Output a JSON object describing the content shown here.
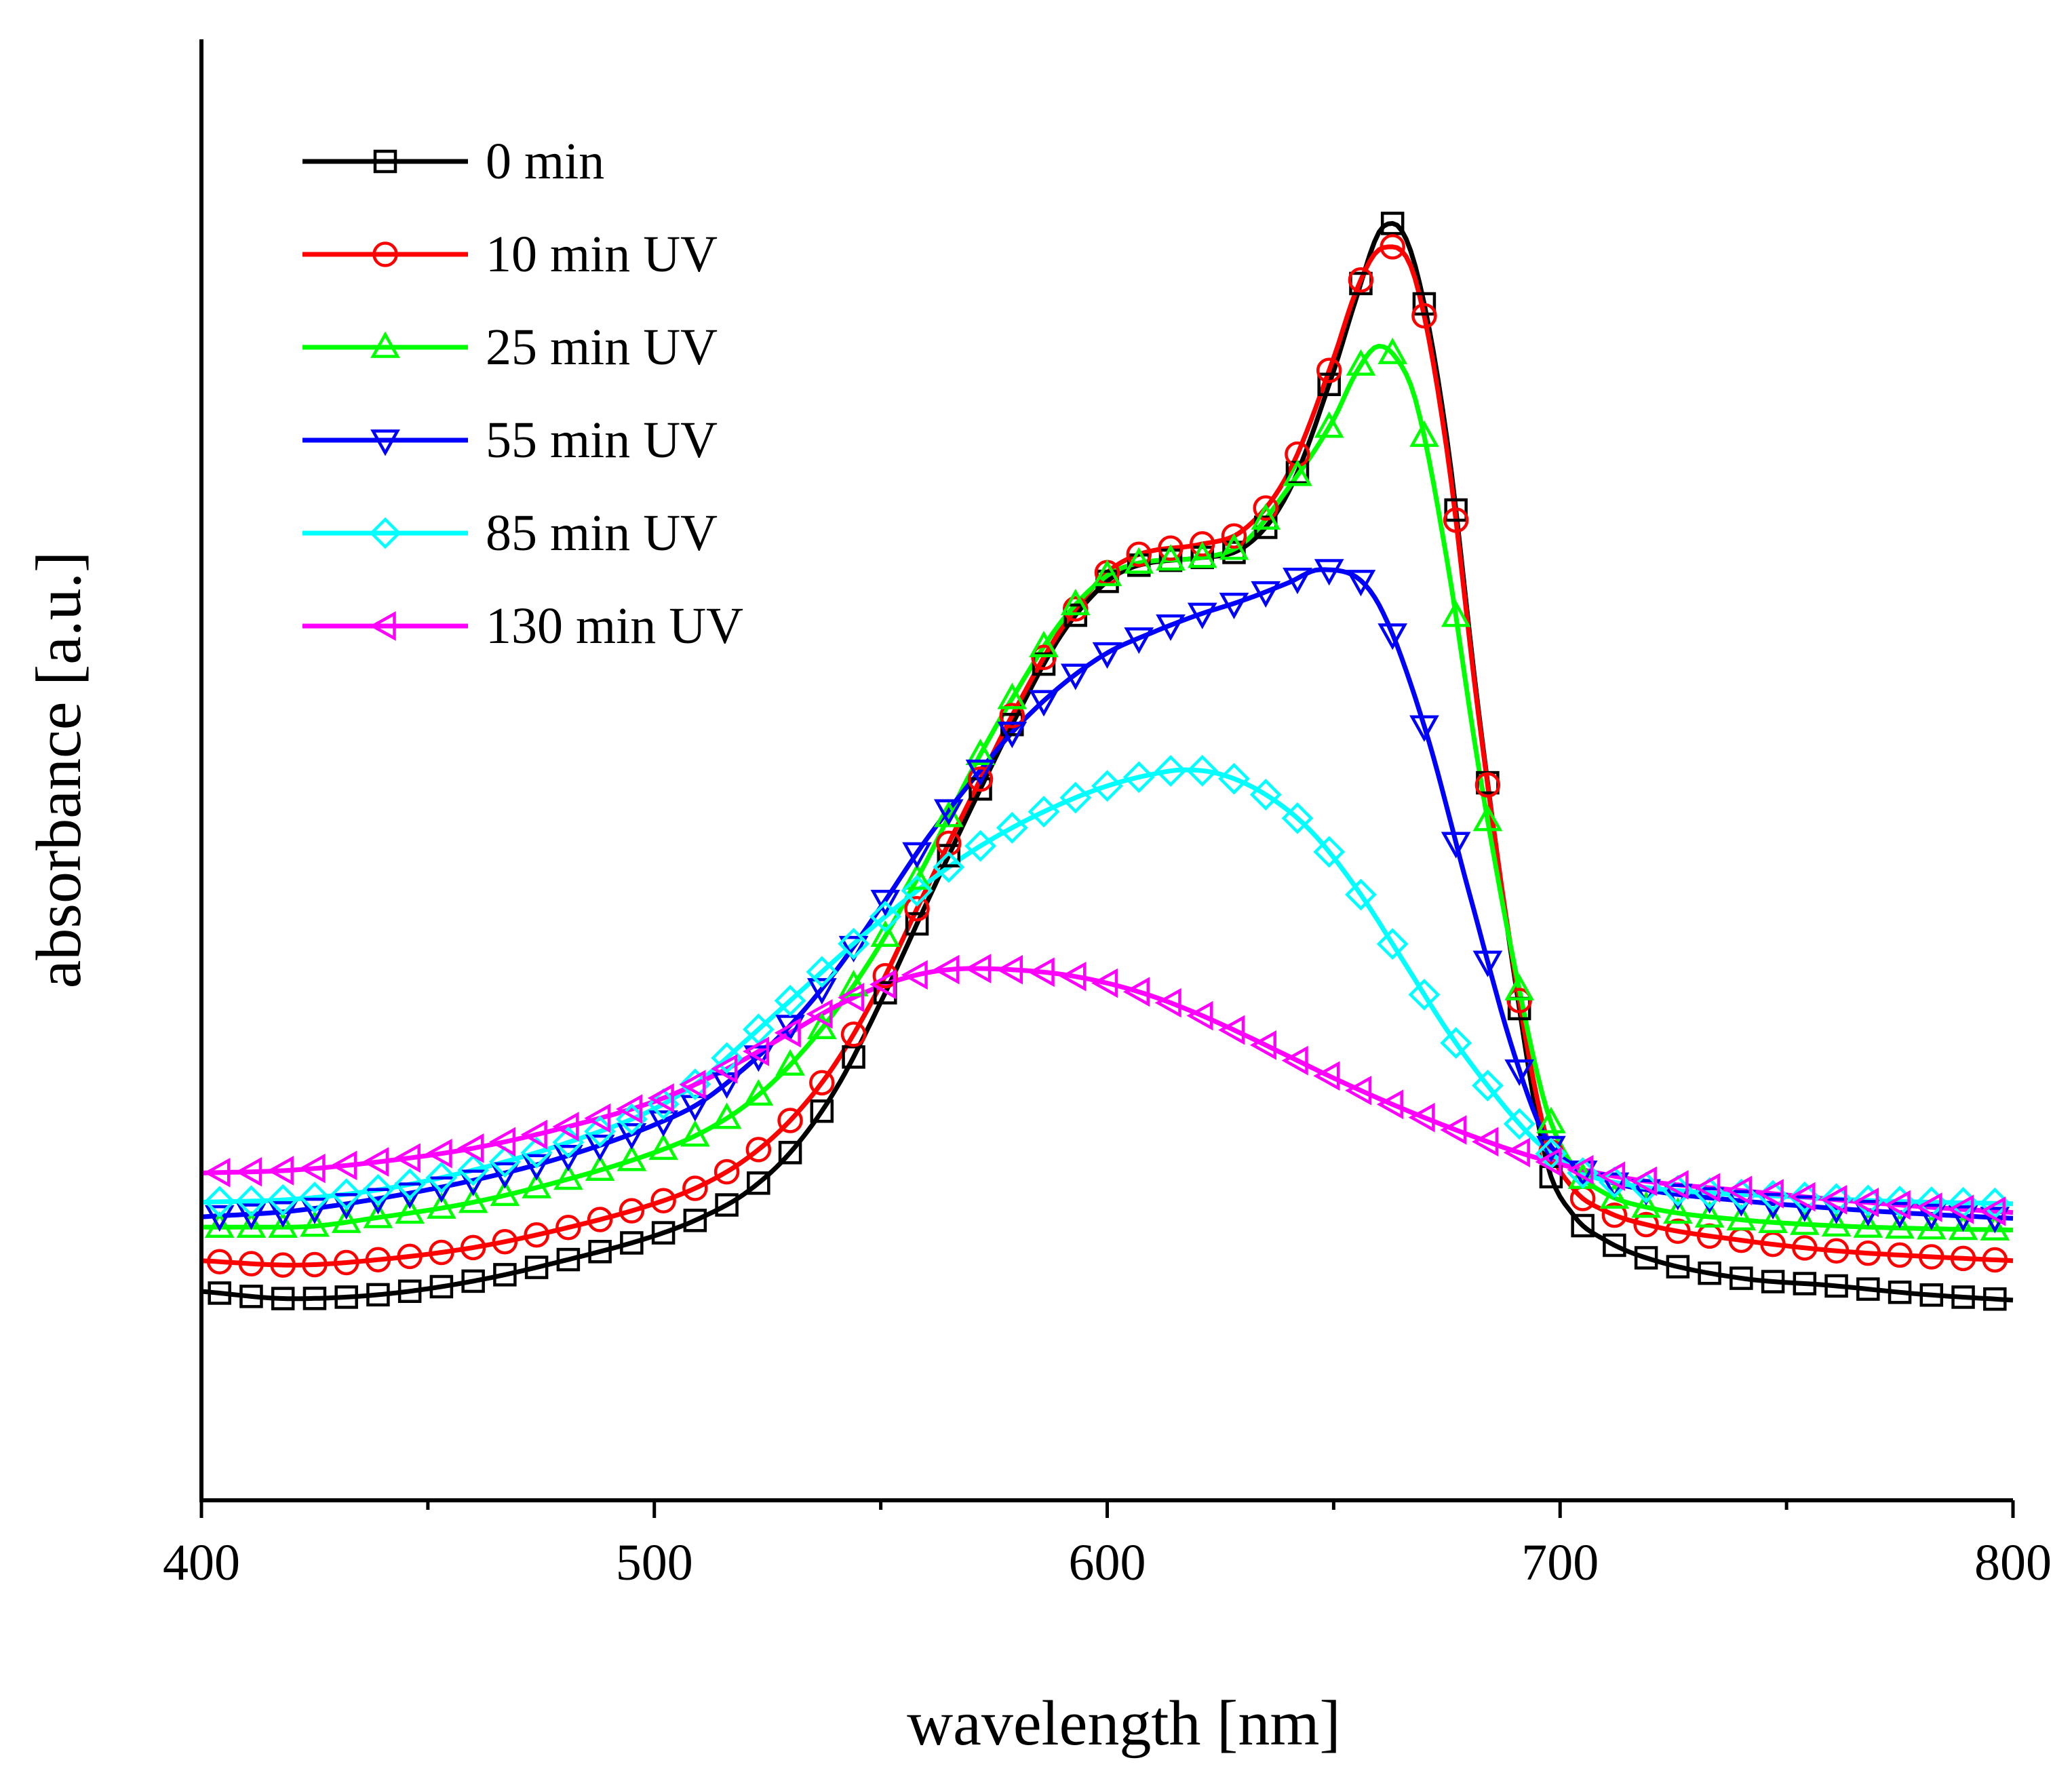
{
  "chart_data": {
    "type": "line",
    "title": "",
    "xlabel": "wavelength [nm]",
    "ylabel": "absorbance [a.u.]",
    "xlim": [
      400,
      800
    ],
    "ylim": [
      0,
      1.0
    ],
    "x_ticks": [
      400,
      500,
      600,
      700,
      800
    ],
    "x_tick_labels": [
      "400",
      "500",
      "600",
      "700",
      "800"
    ],
    "y_ticks": [],
    "grid": false,
    "legend_position": "top-left",
    "series": [
      {
        "name": "0 min",
        "color": "#000000",
        "marker": "square",
        "points": [
          [
            400,
            0.143
          ],
          [
            420,
            0.138
          ],
          [
            440,
            0.141
          ],
          [
            460,
            0.15
          ],
          [
            480,
            0.164
          ],
          [
            500,
            0.181
          ],
          [
            510,
            0.193
          ],
          [
            520,
            0.21
          ],
          [
            530,
            0.238
          ],
          [
            540,
            0.281
          ],
          [
            550,
            0.341
          ],
          [
            560,
            0.408
          ],
          [
            570,
            0.474
          ],
          [
            580,
            0.537
          ],
          [
            590,
            0.593
          ],
          [
            600,
            0.629
          ],
          [
            605,
            0.638
          ],
          [
            610,
            0.642
          ],
          [
            620,
            0.645
          ],
          [
            630,
            0.652
          ],
          [
            640,
            0.69
          ],
          [
            650,
            0.773
          ],
          [
            655,
            0.823
          ],
          [
            660,
            0.868
          ],
          [
            663,
            0.874
          ],
          [
            668,
            0.845
          ],
          [
            675,
            0.727
          ],
          [
            682,
            0.54
          ],
          [
            690,
            0.357
          ],
          [
            697,
            0.232
          ],
          [
            703,
            0.195
          ],
          [
            710,
            0.178
          ],
          [
            720,
            0.165
          ],
          [
            740,
            0.152
          ],
          [
            760,
            0.147
          ],
          [
            780,
            0.141
          ],
          [
            800,
            0.137
          ]
        ]
      },
      {
        "name": "10 min UV",
        "color": "#ff0000",
        "marker": "circle",
        "points": [
          [
            400,
            0.164
          ],
          [
            420,
            0.161
          ],
          [
            440,
            0.165
          ],
          [
            460,
            0.173
          ],
          [
            480,
            0.186
          ],
          [
            500,
            0.203
          ],
          [
            510,
            0.215
          ],
          [
            520,
            0.233
          ],
          [
            530,
            0.26
          ],
          [
            540,
            0.299
          ],
          [
            550,
            0.353
          ],
          [
            560,
            0.418
          ],
          [
            570,
            0.481
          ],
          [
            580,
            0.543
          ],
          [
            590,
            0.597
          ],
          [
            600,
            0.635
          ],
          [
            605,
            0.645
          ],
          [
            610,
            0.65
          ],
          [
            620,
            0.654
          ],
          [
            630,
            0.664
          ],
          [
            640,
            0.703
          ],
          [
            650,
            0.782
          ],
          [
            655,
            0.828
          ],
          [
            660,
            0.856
          ],
          [
            663,
            0.858
          ],
          [
            668,
            0.836
          ],
          [
            675,
            0.719
          ],
          [
            682,
            0.537
          ],
          [
            690,
            0.361
          ],
          [
            697,
            0.248
          ],
          [
            703,
            0.213
          ],
          [
            710,
            0.198
          ],
          [
            720,
            0.188
          ],
          [
            740,
            0.178
          ],
          [
            760,
            0.171
          ],
          [
            780,
            0.167
          ],
          [
            800,
            0.164
          ]
        ]
      },
      {
        "name": "25 min UV",
        "color": "#00ff00",
        "marker": "triangle-up",
        "points": [
          [
            400,
            0.187
          ],
          [
            420,
            0.187
          ],
          [
            440,
            0.194
          ],
          [
            460,
            0.204
          ],
          [
            480,
            0.219
          ],
          [
            500,
            0.238
          ],
          [
            510,
            0.251
          ],
          [
            520,
            0.27
          ],
          [
            530,
            0.298
          ],
          [
            540,
            0.335
          ],
          [
            550,
            0.381
          ],
          [
            560,
            0.437
          ],
          [
            570,
            0.499
          ],
          [
            580,
            0.554
          ],
          [
            590,
            0.602
          ],
          [
            600,
            0.633
          ],
          [
            605,
            0.64
          ],
          [
            610,
            0.643
          ],
          [
            620,
            0.645
          ],
          [
            630,
            0.655
          ],
          [
            640,
            0.693
          ],
          [
            650,
            0.74
          ],
          [
            655,
            0.772
          ],
          [
            660,
            0.79
          ],
          [
            663,
            0.785
          ],
          [
            668,
            0.754
          ],
          [
            675,
            0.644
          ],
          [
            682,
            0.502
          ],
          [
            690,
            0.365
          ],
          [
            697,
            0.268
          ],
          [
            703,
            0.228
          ],
          [
            710,
            0.21
          ],
          [
            720,
            0.2
          ],
          [
            740,
            0.192
          ],
          [
            760,
            0.188
          ],
          [
            780,
            0.186
          ],
          [
            800,
            0.185
          ]
        ]
      },
      {
        "name": "55 min UV",
        "color": "#0000ff",
        "marker": "triangle-down",
        "points": [
          [
            400,
            0.194
          ],
          [
            420,
            0.198
          ],
          [
            440,
            0.207
          ],
          [
            460,
            0.219
          ],
          [
            480,
            0.235
          ],
          [
            500,
            0.257
          ],
          [
            510,
            0.272
          ],
          [
            520,
            0.296
          ],
          [
            530,
            0.325
          ],
          [
            540,
            0.362
          ],
          [
            550,
            0.406
          ],
          [
            560,
            0.452
          ],
          [
            570,
            0.492
          ],
          [
            580,
            0.529
          ],
          [
            590,
            0.558
          ],
          [
            600,
            0.58
          ],
          [
            610,
            0.594
          ],
          [
            620,
            0.606
          ],
          [
            630,
            0.616
          ],
          [
            640,
            0.628
          ],
          [
            647,
            0.637
          ],
          [
            653,
            0.635
          ],
          [
            660,
            0.613
          ],
          [
            670,
            0.53
          ],
          [
            680,
            0.415
          ],
          [
            690,
            0.304
          ],
          [
            697,
            0.247
          ],
          [
            703,
            0.229
          ],
          [
            710,
            0.219
          ],
          [
            720,
            0.212
          ],
          [
            740,
            0.205
          ],
          [
            760,
            0.2
          ],
          [
            780,
            0.196
          ],
          [
            800,
            0.193
          ]
        ]
      },
      {
        "name": "85 min UV",
        "color": "#00ffff",
        "marker": "diamond",
        "points": [
          [
            400,
            0.204
          ],
          [
            420,
            0.206
          ],
          [
            440,
            0.213
          ],
          [
            460,
            0.226
          ],
          [
            480,
            0.244
          ],
          [
            500,
            0.268
          ],
          [
            510,
            0.287
          ],
          [
            520,
            0.314
          ],
          [
            530,
            0.342
          ],
          [
            540,
            0.37
          ],
          [
            550,
            0.397
          ],
          [
            560,
            0.422
          ],
          [
            570,
            0.444
          ],
          [
            580,
            0.462
          ],
          [
            590,
            0.477
          ],
          [
            600,
            0.489
          ],
          [
            610,
            0.497
          ],
          [
            617,
            0.5
          ],
          [
            625,
            0.497
          ],
          [
            635,
            0.483
          ],
          [
            645,
            0.458
          ],
          [
            655,
            0.419
          ],
          [
            665,
            0.371
          ],
          [
            675,
            0.322
          ],
          [
            685,
            0.28
          ],
          [
            695,
            0.245
          ],
          [
            705,
            0.224
          ],
          [
            715,
            0.216
          ],
          [
            730,
            0.211
          ],
          [
            750,
            0.208
          ],
          [
            770,
            0.205
          ],
          [
            800,
            0.203
          ]
        ]
      },
      {
        "name": "130 min UV",
        "color": "#ff00ff",
        "marker": "triangle-left",
        "points": [
          [
            400,
            0.224
          ],
          [
            420,
            0.226
          ],
          [
            440,
            0.232
          ],
          [
            460,
            0.241
          ],
          [
            480,
            0.255
          ],
          [
            500,
            0.273
          ],
          [
            510,
            0.286
          ],
          [
            520,
            0.302
          ],
          [
            530,
            0.32
          ],
          [
            540,
            0.338
          ],
          [
            550,
            0.352
          ],
          [
            560,
            0.361
          ],
          [
            570,
            0.364
          ],
          [
            580,
            0.363
          ],
          [
            590,
            0.36
          ],
          [
            600,
            0.354
          ],
          [
            610,
            0.345
          ],
          [
            620,
            0.333
          ],
          [
            630,
            0.319
          ],
          [
            640,
            0.304
          ],
          [
            650,
            0.289
          ],
          [
            660,
            0.275
          ],
          [
            670,
            0.262
          ],
          [
            680,
            0.25
          ],
          [
            690,
            0.239
          ],
          [
            700,
            0.23
          ],
          [
            710,
            0.223
          ],
          [
            720,
            0.218
          ],
          [
            740,
            0.212
          ],
          [
            760,
            0.206
          ],
          [
            780,
            0.201
          ],
          [
            800,
            0.197
          ]
        ]
      }
    ]
  }
}
